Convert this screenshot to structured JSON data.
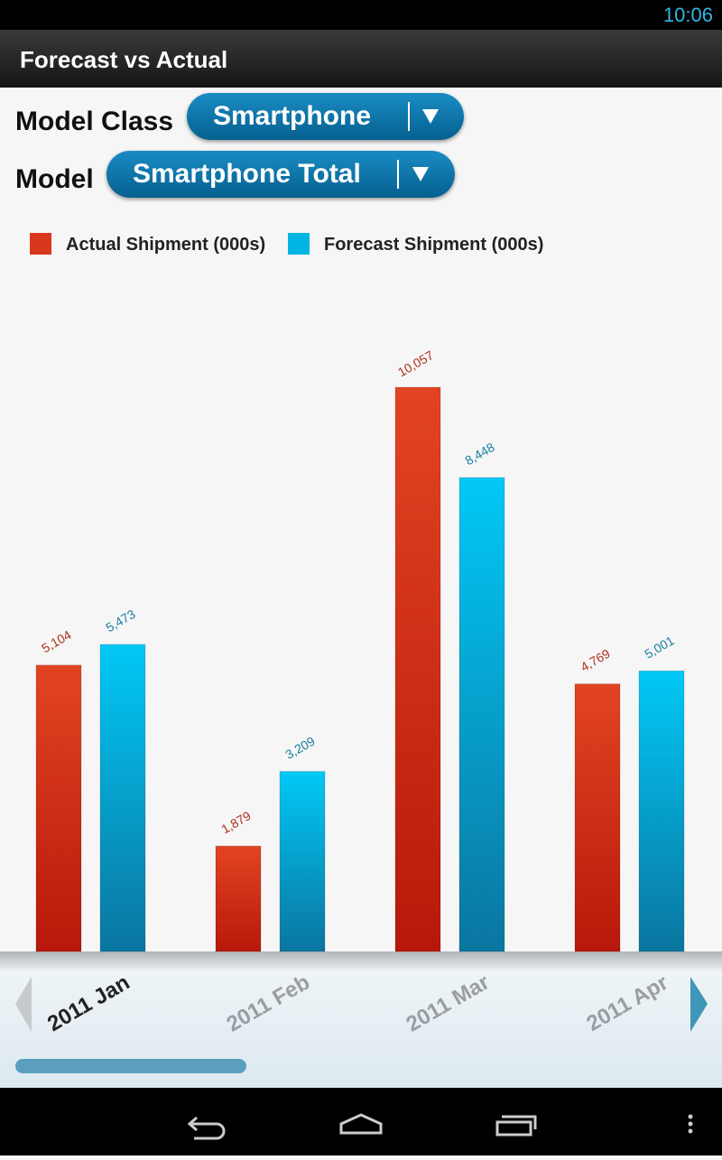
{
  "status_bar": {
    "time": "10:06"
  },
  "app_bar": {
    "title": "Forecast vs Actual"
  },
  "filters": [
    {
      "label": "Model Class",
      "value": "Smartphone"
    },
    {
      "label": "Model",
      "value": "Smartphone Total"
    }
  ],
  "chart_data": {
    "type": "bar",
    "categories": [
      "2011 Jan",
      "2011 Feb",
      "2011 Mar",
      "2011 Apr"
    ],
    "series": [
      {
        "name": "Actual Shipment (000s)",
        "color": "#d9381e",
        "values": [
          5104,
          1879,
          10057,
          4769
        ],
        "value_labels": [
          "5,104",
          "1,879",
          "10,057",
          "4,769"
        ]
      },
      {
        "name": "Forecast Shipment (000s)",
        "color": "#00b4e4",
        "values": [
          5473,
          3209,
          8448,
          5001
        ],
        "value_labels": [
          "5,473",
          "3,209",
          "8,448",
          "5,001"
        ]
      }
    ],
    "legend": "top-left"
  }
}
